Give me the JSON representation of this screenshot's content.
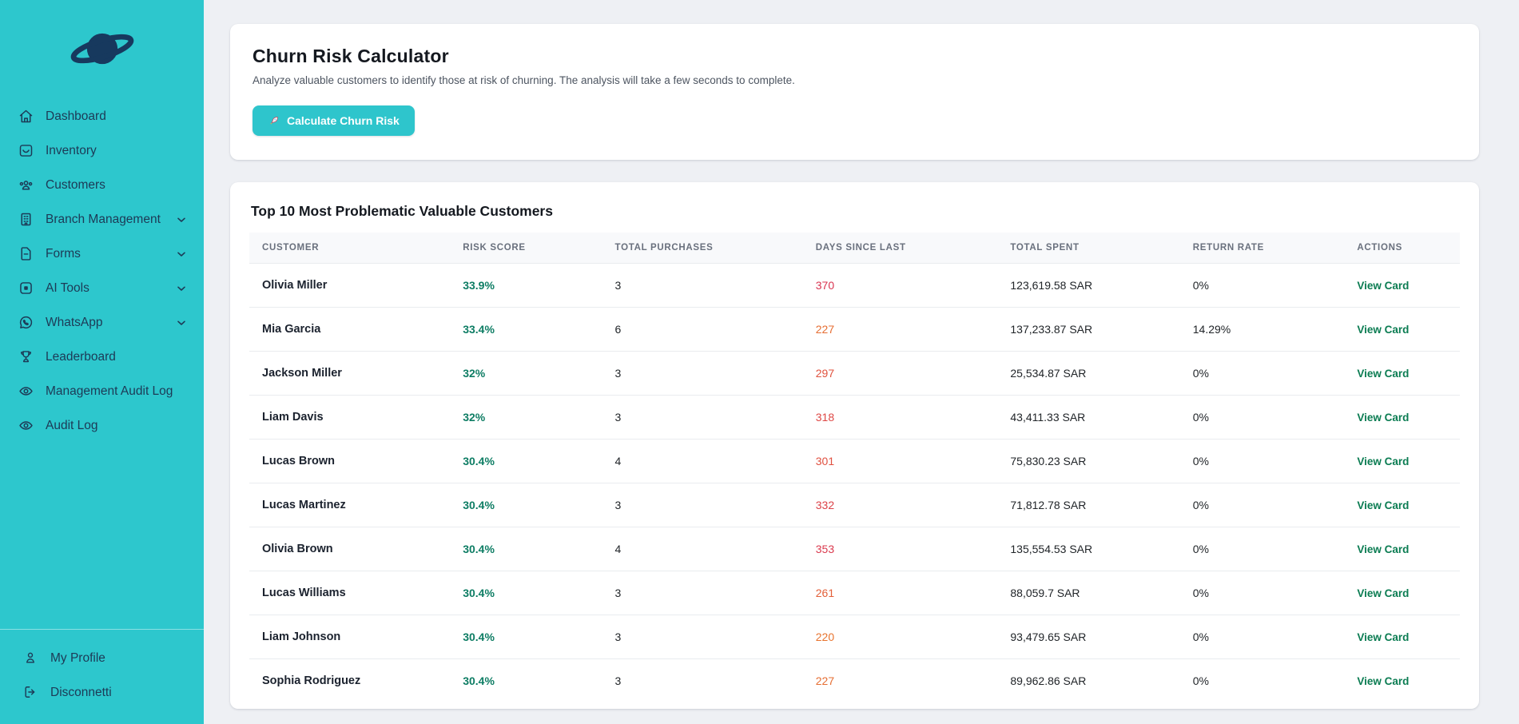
{
  "colors": {
    "sidebar_bg": "#2dc7cd",
    "sidebar_text": "#1d3a56",
    "logo_navy": "#17395e",
    "accent_teal": "#2ec5cc",
    "content_bg": "#eef0f4",
    "risk_score_green": "#0e7d64",
    "view_card_green": "#0b7c52",
    "table_border": "#e9ecef"
  },
  "sidebar": {
    "logo": "saturn-planet-logo",
    "items": [
      {
        "label": "Dashboard",
        "icon": "home-icon",
        "expandable": false
      },
      {
        "label": "Inventory",
        "icon": "box-icon",
        "expandable": false
      },
      {
        "label": "Customers",
        "icon": "users-icon",
        "expandable": false
      },
      {
        "label": "Branch Management",
        "icon": "building-icon",
        "expandable": true
      },
      {
        "label": "Forms",
        "icon": "document-icon",
        "expandable": true
      },
      {
        "label": "AI Tools",
        "icon": "app-square-icon",
        "expandable": true
      },
      {
        "label": "WhatsApp",
        "icon": "whatsapp-icon",
        "expandable": true
      },
      {
        "label": "Leaderboard",
        "icon": "trophy-icon",
        "expandable": false
      },
      {
        "label": "Management Audit Log",
        "icon": "eye-icon",
        "expandable": false
      },
      {
        "label": "Audit Log",
        "icon": "eye-icon",
        "expandable": false
      }
    ],
    "footer_items": [
      {
        "label": "My Profile",
        "icon": "person-icon"
      },
      {
        "label": "Disconnetti",
        "icon": "logout-icon"
      }
    ]
  },
  "churn_card": {
    "title": "Churn Risk Calculator",
    "description": "Analyze valuable customers to identify those at risk of churning. The analysis will take a few seconds to complete.",
    "button_icon": "rocket-icon",
    "button_label": "Calculate Churn Risk"
  },
  "table_card": {
    "title": "Top 10 Most Problematic Valuable Customers",
    "columns": [
      "CUSTOMER",
      "RISK SCORE",
      "TOTAL PURCHASES",
      "DAYS SINCE LAST",
      "TOTAL SPENT",
      "RETURN RATE",
      "ACTIONS"
    ],
    "action_label": "View Card",
    "rows": [
      {
        "customer": "Olivia Miller",
        "risk_score": "33.9%",
        "total_purchases": "3",
        "days_since_last": "370",
        "days_color": "#d93551",
        "total_spent": "123,619.58 SAR",
        "return_rate": "0%"
      },
      {
        "customer": "Mia Garcia",
        "risk_score": "33.4%",
        "total_purchases": "6",
        "days_since_last": "227",
        "days_color": "#e66e33",
        "total_spent": "137,233.87 SAR",
        "return_rate": "14.29%"
      },
      {
        "customer": "Jackson Miller",
        "risk_score": "32%",
        "total_purchases": "3",
        "days_since_last": "297",
        "days_color": "#e0523e",
        "total_spent": "25,534.87 SAR",
        "return_rate": "0%"
      },
      {
        "customer": "Liam Davis",
        "risk_score": "32%",
        "total_purchases": "3",
        "days_since_last": "318",
        "days_color": "#de4845",
        "total_spent": "43,411.33 SAR",
        "return_rate": "0%"
      },
      {
        "customer": "Lucas Brown",
        "risk_score": "30.4%",
        "total_purchases": "4",
        "days_since_last": "301",
        "days_color": "#e05040",
        "total_spent": "75,830.23 SAR",
        "return_rate": "0%"
      },
      {
        "customer": "Lucas Martinez",
        "risk_score": "30.4%",
        "total_purchases": "3",
        "days_since_last": "332",
        "days_color": "#dc4248",
        "total_spent": "71,812.78 SAR",
        "return_rate": "0%"
      },
      {
        "customer": "Olivia Brown",
        "risk_score": "30.4%",
        "total_purchases": "4",
        "days_since_last": "353",
        "days_color": "#da3a4e",
        "total_spent": "135,554.53 SAR",
        "return_rate": "0%"
      },
      {
        "customer": "Lucas Williams",
        "risk_score": "30.4%",
        "total_purchases": "3",
        "days_since_last": "261",
        "days_color": "#e35f38",
        "total_spent": "88,059.7 SAR",
        "return_rate": "0%"
      },
      {
        "customer": "Liam Johnson",
        "risk_score": "30.4%",
        "total_purchases": "3",
        "days_since_last": "220",
        "days_color": "#e8742f",
        "total_spent": "93,479.65 SAR",
        "return_rate": "0%"
      },
      {
        "customer": "Sophia Rodriguez",
        "risk_score": "30.4%",
        "total_purchases": "3",
        "days_since_last": "227",
        "days_color": "#e66e33",
        "total_spent": "89,962.86 SAR",
        "return_rate": "0%"
      }
    ]
  }
}
